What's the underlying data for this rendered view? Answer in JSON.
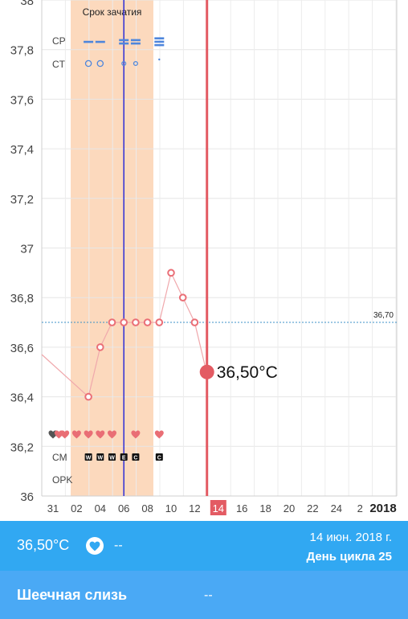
{
  "chart_data": {
    "type": "line",
    "ylim": [
      36.0,
      38.0
    ],
    "y_ticks": [
      "36",
      "36,2",
      "36,4",
      "36,6",
      "36,8",
      "37",
      "37,2",
      "37,4",
      "37,6",
      "37,8",
      "38"
    ],
    "x_tick_labels": [
      "31",
      "02",
      "04",
      "06",
      "08",
      "10",
      "12",
      "14",
      "16",
      "18",
      "20",
      "22",
      "24",
      "2",
      "2018"
    ],
    "highlighted_tick": "14",
    "fertile_window_label": "Срок зачатия",
    "fertile_window_days": [
      2.5,
      9.5
    ],
    "ovulation_day": 7,
    "current_day": 14,
    "coverline_label": "36,70",
    "coverline_value": 36.7,
    "current_value_label": "36,50°C",
    "series": [
      {
        "x": [
          4,
          5,
          6,
          7,
          8,
          9,
          10,
          11,
          12,
          13,
          14
        ],
        "values": [
          36.4,
          36.6,
          36.7,
          36.7,
          36.7,
          36.7,
          36.7,
          36.9,
          36.8,
          36.7,
          36.5
        ]
      }
    ],
    "row_labels": {
      "cp": "CP",
      "ct": "CT",
      "cm": "CM",
      "opk": "OPK"
    },
    "cp_marks": [
      {
        "day": 4,
        "level": 1
      },
      {
        "day": 5,
        "level": 1
      },
      {
        "day": 7,
        "level": 2
      },
      {
        "day": 8,
        "level": 2
      },
      {
        "day": 10,
        "level": 3
      }
    ],
    "ct_marks": [
      {
        "day": 4,
        "size": 3
      },
      {
        "day": 5,
        "size": 3
      },
      {
        "day": 7,
        "size": 2
      },
      {
        "day": 8,
        "size": 2
      },
      {
        "day": 10,
        "size": 1
      }
    ],
    "hearts": [
      {
        "day": 1,
        "color": "#555555"
      },
      {
        "day": 1.5,
        "color": "#e96e75"
      },
      {
        "day": 2,
        "color": "#e96e75"
      },
      {
        "day": 3,
        "color": "#e96e75"
      },
      {
        "day": 4,
        "color": "#e96e75"
      },
      {
        "day": 5,
        "color": "#e96e75"
      },
      {
        "day": 6,
        "color": "#e96e75"
      },
      {
        "day": 8,
        "color": "#e96e75"
      },
      {
        "day": 10,
        "color": "#e96e75"
      }
    ],
    "cm_marks": [
      {
        "day": 4,
        "text": "W"
      },
      {
        "day": 5,
        "text": "W"
      },
      {
        "day": 6,
        "text": "W"
      },
      {
        "day": 7,
        "text": "E"
      },
      {
        "day": 8,
        "text": "C"
      },
      {
        "day": 10,
        "text": "C"
      }
    ]
  },
  "colors": {
    "fertile": "#fcd9bd",
    "temp": "#ea6f77",
    "ovulation": "#2f2fd6",
    "current": "#e35b63",
    "coverline": "#3d91c7",
    "cp": "#4e86dc"
  },
  "info_bar": {
    "temp": "36,50°C",
    "heart_icon": "heart-icon",
    "dash": "--",
    "date": "14 июн. 2018 г.",
    "cycle": "День цикла 25"
  },
  "mucus": {
    "label": "Шеечная слизь",
    "value": "--"
  }
}
